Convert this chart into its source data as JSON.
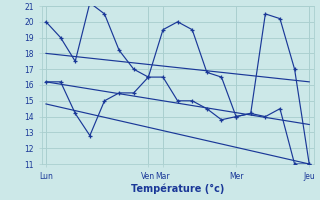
{
  "title": "Température (°c)",
  "background_color": "#cce8e8",
  "grid_color": "#aacfcf",
  "line_color": "#1a3898",
  "ylim": [
    11,
    21
  ],
  "ytick_labels": [
    "11",
    "12",
    "13",
    "14",
    "15",
    "16",
    "17",
    "18",
    "19",
    "20",
    "21"
  ],
  "day_names": [
    "Lun",
    "Ven",
    "Mar",
    "Mer",
    "Jeu"
  ],
  "day_x": [
    0,
    7,
    8,
    13,
    18
  ],
  "xlim": [
    -0.3,
    18.3
  ],
  "curve1_x": [
    0,
    1,
    2,
    3,
    4,
    5,
    6,
    7,
    8,
    9,
    10,
    11,
    12,
    13,
    14,
    15,
    16,
    17,
    18
  ],
  "curve1_y": [
    20,
    19,
    17.5,
    21.2,
    20.5,
    18.2,
    17.0,
    16.5,
    19.5,
    20.0,
    19.5,
    16.8,
    16.5,
    14.0,
    14.2,
    20.5,
    20.2,
    17.0,
    11.0
  ],
  "curve2_x": [
    0,
    1,
    2,
    3,
    4,
    5,
    6,
    7,
    8,
    9,
    10,
    11,
    12,
    13,
    14,
    15,
    16,
    17,
    18
  ],
  "curve2_y": [
    16.2,
    16.2,
    14.2,
    12.8,
    15.0,
    15.5,
    15.5,
    16.5,
    16.5,
    15.0,
    15.0,
    14.5,
    13.8,
    14.0,
    14.2,
    14.0,
    14.5,
    11.0,
    11.0
  ],
  "trend1_x": [
    0,
    18
  ],
  "trend1_y": [
    18.0,
    16.2
  ],
  "trend2_x": [
    0,
    18
  ],
  "trend2_y": [
    16.2,
    13.5
  ],
  "trend3_x": [
    0,
    18
  ],
  "trend3_y": [
    14.8,
    11.0
  ],
  "lw": 0.85,
  "marker_size": 2.8
}
